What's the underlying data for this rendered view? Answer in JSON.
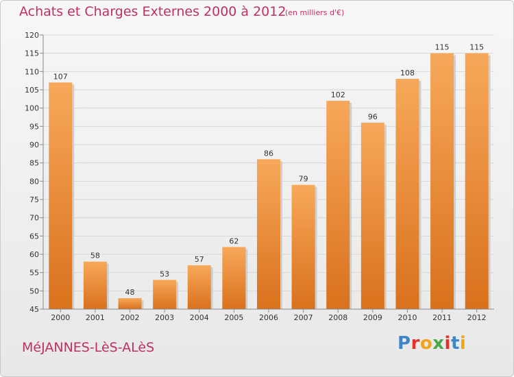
{
  "chart_data": {
    "type": "bar",
    "title": "Achats et Charges Externes 2000 à 2012",
    "unit_label": "(en milliers d'€)",
    "categories": [
      "2000",
      "2001",
      "2002",
      "2003",
      "2004",
      "2005",
      "2006",
      "2007",
      "2008",
      "2009",
      "2010",
      "2011",
      "2012"
    ],
    "values": [
      107,
      58,
      48,
      53,
      57,
      62,
      86,
      79,
      102,
      96,
      108,
      115,
      115
    ],
    "ylim": [
      45,
      120
    ],
    "yticks": [
      45,
      50,
      55,
      60,
      65,
      70,
      75,
      80,
      85,
      90,
      95,
      100,
      105,
      110,
      115,
      120
    ],
    "grid": true,
    "bar_color_top": "#f7a85a",
    "bar_color_bottom": "#d9711c"
  },
  "footer": {
    "place": "MéJANNES-LèS-ALèS",
    "logo": "Proxiti"
  }
}
